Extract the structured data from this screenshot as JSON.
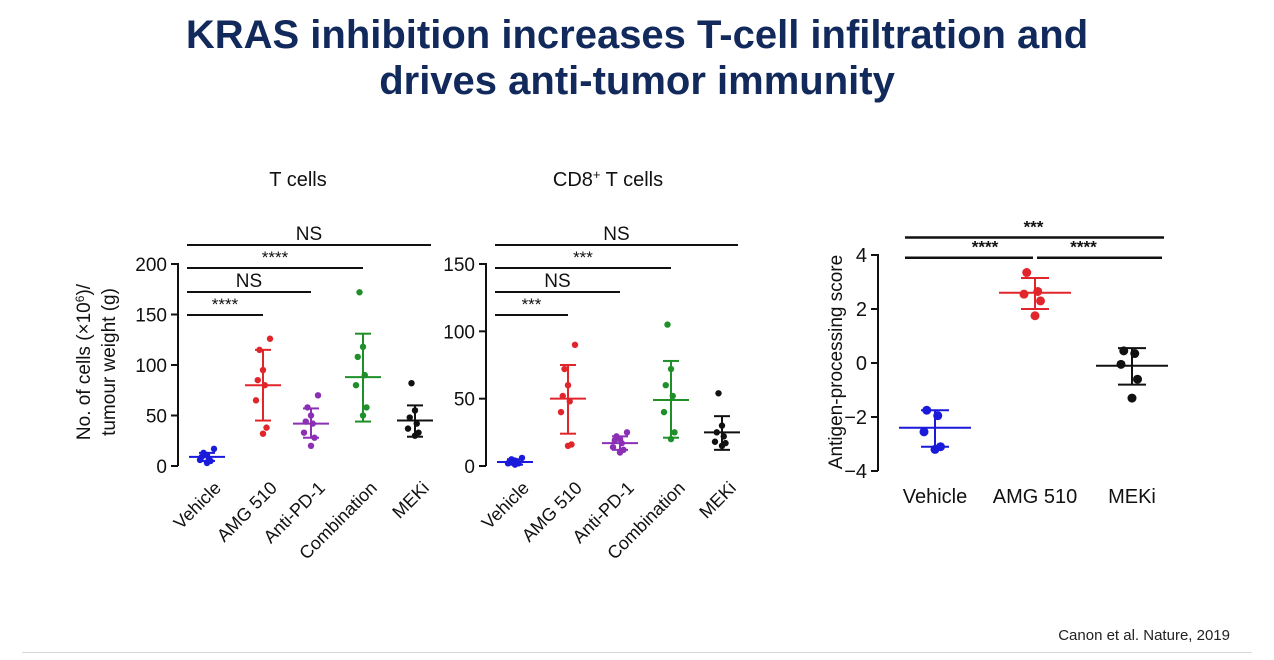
{
  "slide": {
    "title_line1": "KRAS inhibition increases T-cell infiltration and",
    "title_line2": "drives anti-tumor immunity",
    "citation": "Canon et al. Nature, 2019"
  },
  "colors": {
    "title": "#12295c",
    "vehicle": "#1a1adb",
    "amg510": "#e0262b",
    "antipd1": "#8b2fb5",
    "combination": "#1f8f2a",
    "meki": "#111111"
  },
  "chart_data": [
    {
      "type": "scatter",
      "title": "T cells",
      "title_sup": "",
      "ylabel_line1": "No. of cells (×10",
      "ylabel_sup": "6",
      "ylabel_line1_end": ")/",
      "ylabel_line2": "tumour weight (g)",
      "ylim": [
        0,
        200
      ],
      "yticks": [
        "0",
        "50",
        "100",
        "150",
        "200"
      ],
      "yticks_values": [
        0,
        50,
        100,
        150,
        200
      ],
      "categories": [
        "Vehicle",
        "AMG 510",
        "Anti-PD-1",
        "Combination",
        "MEKi"
      ],
      "series": [
        {
          "color_key": "vehicle",
          "mean": 9,
          "sd_low": 5,
          "sd_high": 13,
          "points": [
            3,
            5,
            6,
            7,
            9,
            11,
            13,
            17
          ]
        },
        {
          "color_key": "amg510",
          "mean": 80,
          "sd_low": 45,
          "sd_high": 115,
          "points": [
            32,
            38,
            65,
            80,
            85,
            95,
            115,
            126
          ]
        },
        {
          "color_key": "antipd1",
          "mean": 42,
          "sd_low": 28,
          "sd_high": 57,
          "points": [
            20,
            28,
            33,
            42,
            44,
            50,
            58,
            70
          ]
        },
        {
          "color_key": "combination",
          "mean": 88,
          "sd_low": 44,
          "sd_high": 131,
          "points": [
            50,
            58,
            80,
            90,
            108,
            118,
            172
          ]
        },
        {
          "color_key": "meki",
          "mean": 45,
          "sd_low": 29,
          "sd_high": 60,
          "points": [
            30,
            33,
            37,
            42,
            48,
            55,
            82
          ]
        }
      ],
      "significance": [
        {
          "from": 0,
          "to": 1,
          "label": "****",
          "y": 150
        },
        {
          "from": 0,
          "to": 2,
          "label": "NS",
          "y": 173
        },
        {
          "from": 0,
          "to": 3,
          "label": "****",
          "y": 196
        },
        {
          "from": 0,
          "to": 4,
          "label": "NS",
          "y": 219
        }
      ]
    },
    {
      "type": "scatter",
      "title": "CD8",
      "title_sup": "+",
      "title_end": " T cells",
      "ylim": [
        0,
        150
      ],
      "yticks": [
        "0",
        "50",
        "100",
        "150"
      ],
      "yticks_values": [
        0,
        50,
        100,
        150
      ],
      "categories": [
        "Vehicle",
        "AMG 510",
        "Anti-PD-1",
        "Combination",
        "MEKi"
      ],
      "series": [
        {
          "color_key": "vehicle",
          "mean": 3,
          "sd_low": 1,
          "sd_high": 5,
          "points": [
            1,
            2,
            2,
            3,
            3,
            4,
            5,
            6
          ]
        },
        {
          "color_key": "amg510",
          "mean": 50,
          "sd_low": 24,
          "sd_high": 75,
          "points": [
            15,
            16,
            40,
            48,
            52,
            60,
            72,
            90
          ]
        },
        {
          "color_key": "antipd1",
          "mean": 17,
          "sd_low": 12,
          "sd_high": 22,
          "points": [
            10,
            12,
            14,
            17,
            19,
            20,
            22,
            25
          ]
        },
        {
          "color_key": "combination",
          "mean": 49,
          "sd_low": 21,
          "sd_high": 78,
          "points": [
            20,
            25,
            40,
            52,
            60,
            72,
            105
          ]
        },
        {
          "color_key": "meki",
          "mean": 25,
          "sd_low": 12,
          "sd_high": 37,
          "points": [
            15,
            17,
            18,
            22,
            25,
            30,
            54
          ]
        }
      ],
      "significance": [
        {
          "from": 0,
          "to": 1,
          "label": "***",
          "y": 112
        },
        {
          "from": 0,
          "to": 2,
          "label": "NS",
          "y": 130
        },
        {
          "from": 0,
          "to": 3,
          "label": "***",
          "y": 147
        },
        {
          "from": 0,
          "to": 4,
          "label": "NS",
          "y": 164
        }
      ]
    },
    {
      "type": "scatter",
      "ylabel": "Antigen-processing score",
      "ylim": [
        -4,
        4
      ],
      "yticks": [
        "−4",
        "−2",
        "0",
        "2",
        "4"
      ],
      "yticks_values": [
        -4,
        -2,
        0,
        2,
        4
      ],
      "categories": [
        "Vehicle",
        "AMG 510",
        "MEKi"
      ],
      "series": [
        {
          "color_key": "vehicle",
          "mean": -2.4,
          "sd_low": -3.1,
          "sd_high": -1.75,
          "points": [
            -3.2,
            -3.1,
            -2.55,
            -1.95,
            -1.75
          ]
        },
        {
          "color_key": "amg510",
          "mean": 2.6,
          "sd_low": 2.0,
          "sd_high": 3.15,
          "points": [
            1.75,
            2.3,
            2.55,
            2.65,
            3.35
          ]
        },
        {
          "color_key": "meki",
          "mean": -0.1,
          "sd_low": -0.8,
          "sd_high": 0.55,
          "points": [
            -1.3,
            -0.6,
            -0.05,
            0.35,
            0.45
          ]
        }
      ],
      "significance": [
        {
          "from": 0,
          "to": 1,
          "label": "****",
          "y": 3.9
        },
        {
          "from": 1,
          "to": 2,
          "label": "****",
          "y": 3.9
        },
        {
          "from": 0,
          "to": 2,
          "label": "***",
          "y": 4.65
        }
      ]
    }
  ]
}
